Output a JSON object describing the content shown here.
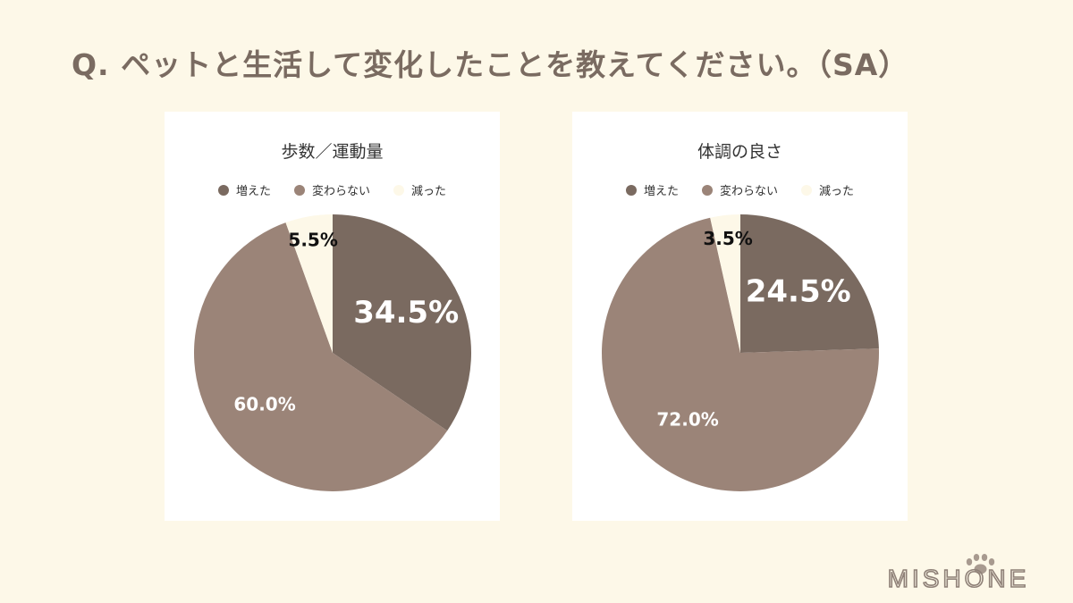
{
  "question": "Q.  ペットと生活して変化したことを教えてください。（SA）",
  "logo_text": "MISHONE",
  "colors": {
    "increased": "#7a6a60",
    "unchanged": "#9b8478",
    "decreased": "#fdf8e8"
  },
  "chart_data": [
    {
      "type": "pie",
      "title": "歩数／運動量",
      "categories": [
        "増えた",
        "変わらない",
        "減った"
      ],
      "values": [
        34.5,
        60.0,
        5.5
      ],
      "labels": [
        "34.5%",
        "60.0%",
        "5.5%"
      ],
      "legend": "top-center"
    },
    {
      "type": "pie",
      "title": "体調の良さ",
      "categories": [
        "増えた",
        "変わらない",
        "減った"
      ],
      "values": [
        24.5,
        72.0,
        3.5
      ],
      "labels": [
        "24.5%",
        "72.0%",
        "3.5%"
      ],
      "legend": "top-center"
    }
  ]
}
